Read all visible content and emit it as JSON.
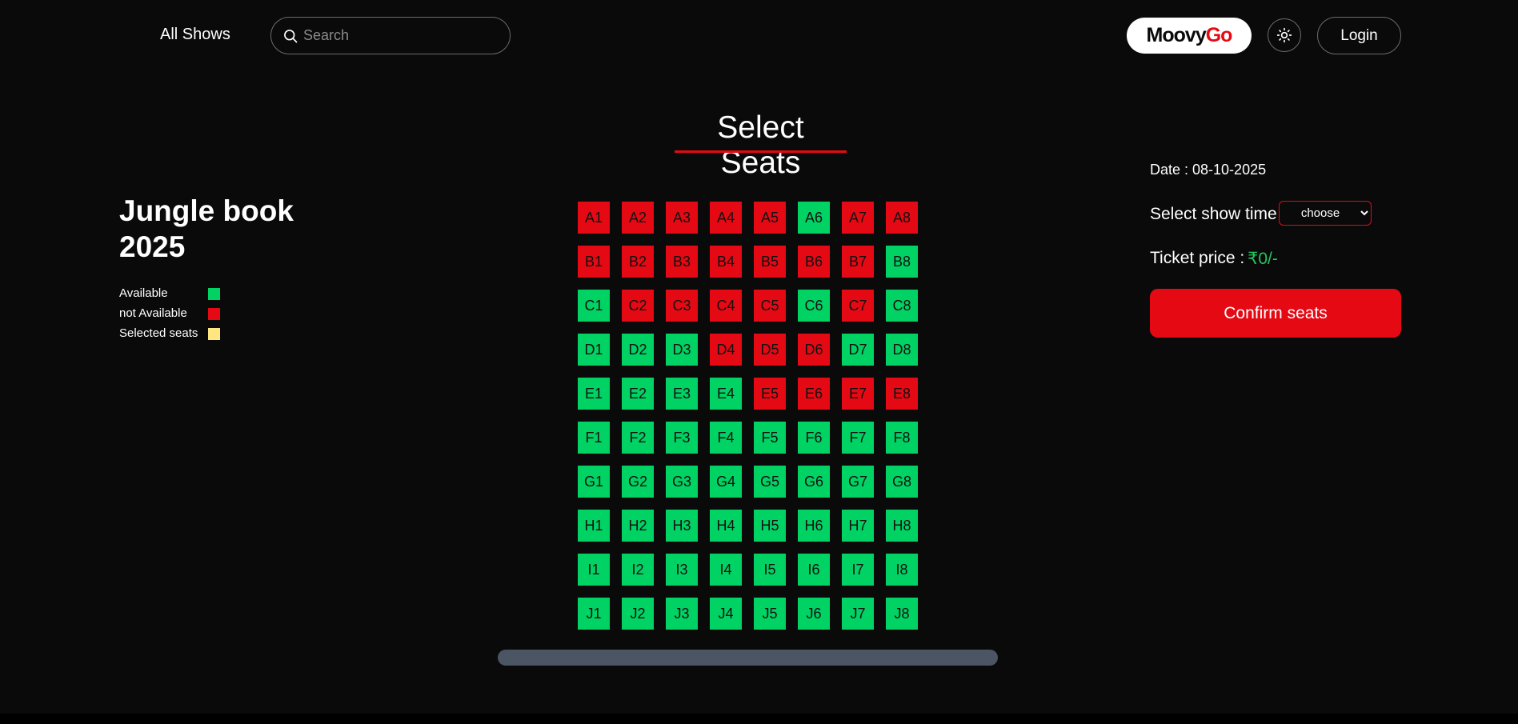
{
  "header": {
    "nav_all_shows": "All Shows",
    "search_placeholder": "Search",
    "logo_part1": "Moovy",
    "logo_part2": "Go",
    "login_label": "Login"
  },
  "page_title": "Select Seats",
  "movie": {
    "title": "Jungle book 2025"
  },
  "legend": [
    {
      "label": "Available",
      "color": "#00d264"
    },
    {
      "label": "not Available",
      "color": "#e50914"
    },
    {
      "label": "Selected seats",
      "color": "#ffe680"
    }
  ],
  "seats": {
    "rows": [
      "A",
      "B",
      "C",
      "D",
      "E",
      "F",
      "G",
      "H",
      "I",
      "J"
    ],
    "cols": [
      1,
      2,
      3,
      4,
      5,
      6,
      7,
      8
    ],
    "unavailable": [
      "A1",
      "A2",
      "A3",
      "A4",
      "A5",
      "A7",
      "A8",
      "B1",
      "B2",
      "B3",
      "B4",
      "B5",
      "B6",
      "B7",
      "C2",
      "C3",
      "C4",
      "C5",
      "C7",
      "D4",
      "D5",
      "D6",
      "E5",
      "E6",
      "E7",
      "E8"
    ],
    "selected": []
  },
  "booking": {
    "date_text": "Date : 08-10-2025",
    "show_time_label": "Select show time",
    "show_time_selected": "choose",
    "ticket_price_label": "Ticket price :",
    "ticket_price_value": "₹0/-",
    "confirm_label": "Confirm seats"
  },
  "colors": {
    "accent": "#e50914",
    "available": "#00d264",
    "price": "#22c55e"
  }
}
